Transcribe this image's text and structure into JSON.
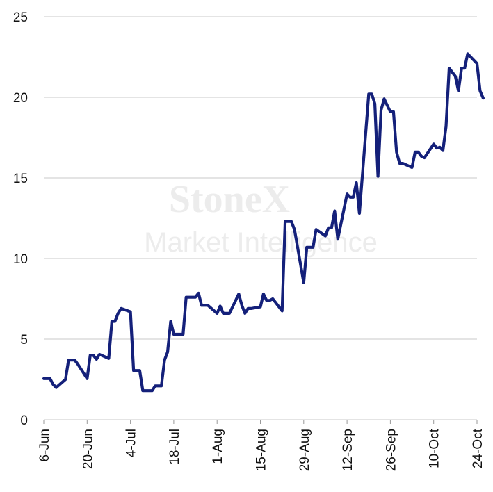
{
  "watermark": {
    "line1": "StoneX",
    "line2": "Market Intelligence"
  },
  "chart_data": {
    "type": "line",
    "title": "",
    "xlabel": "",
    "ylabel": "",
    "ylim": [
      0,
      25
    ],
    "yticks": [
      0,
      5,
      10,
      15,
      20,
      25
    ],
    "xlim": [
      "2022-06-06",
      "2022-10-24"
    ],
    "xticks": [
      {
        "date": "2022-06-06",
        "label": "6-Jun"
      },
      {
        "date": "2022-06-20",
        "label": "20-Jun"
      },
      {
        "date": "2022-07-04",
        "label": "4-Jul"
      },
      {
        "date": "2022-07-18",
        "label": "18-Jul"
      },
      {
        "date": "2022-08-01",
        "label": "1-Aug"
      },
      {
        "date": "2022-08-15",
        "label": "15-Aug"
      },
      {
        "date": "2022-08-29",
        "label": "29-Aug"
      },
      {
        "date": "2022-09-12",
        "label": "12-Sep"
      },
      {
        "date": "2022-09-26",
        "label": "26-Sep"
      },
      {
        "date": "2022-10-10",
        "label": "10-Oct"
      },
      {
        "date": "2022-10-24",
        "label": "24-Oct"
      }
    ],
    "grid": true,
    "series": [
      {
        "color": "#14207a",
        "points": [
          [
            "2022-06-06",
            2.55
          ],
          [
            "2022-06-07",
            2.55
          ],
          [
            "2022-06-08",
            2.55
          ],
          [
            "2022-06-09",
            2.2
          ],
          [
            "2022-06-10",
            2.0
          ],
          [
            "2022-06-13",
            2.5
          ],
          [
            "2022-06-14",
            3.7
          ],
          [
            "2022-06-15",
            3.7
          ],
          [
            "2022-06-16",
            3.7
          ],
          [
            "2022-06-17",
            3.45
          ],
          [
            "2022-06-20",
            2.55
          ],
          [
            "2022-06-21",
            4.0
          ],
          [
            "2022-06-22",
            4.0
          ],
          [
            "2022-06-23",
            3.75
          ],
          [
            "2022-06-24",
            4.05
          ],
          [
            "2022-06-27",
            3.8
          ],
          [
            "2022-06-28",
            6.1
          ],
          [
            "2022-06-29",
            6.1
          ],
          [
            "2022-06-30",
            6.6
          ],
          [
            "2022-07-01",
            6.9
          ],
          [
            "2022-07-04",
            6.7
          ],
          [
            "2022-07-05",
            3.05
          ],
          [
            "2022-07-06",
            3.05
          ],
          [
            "2022-07-07",
            3.05
          ],
          [
            "2022-07-08",
            1.8
          ],
          [
            "2022-07-11",
            1.8
          ],
          [
            "2022-07-12",
            2.1
          ],
          [
            "2022-07-13",
            2.1
          ],
          [
            "2022-07-14",
            2.1
          ],
          [
            "2022-07-15",
            3.7
          ],
          [
            "2022-07-16",
            4.2
          ],
          [
            "2022-07-17",
            6.1
          ],
          [
            "2022-07-18",
            5.3
          ],
          [
            "2022-07-19",
            5.3
          ],
          [
            "2022-07-20",
            5.3
          ],
          [
            "2022-07-21",
            5.3
          ],
          [
            "2022-07-22",
            7.6
          ],
          [
            "2022-07-25",
            7.6
          ],
          [
            "2022-07-26",
            7.85
          ],
          [
            "2022-07-27",
            7.1
          ],
          [
            "2022-07-28",
            7.1
          ],
          [
            "2022-07-29",
            7.1
          ],
          [
            "2022-08-01",
            6.6
          ],
          [
            "2022-08-02",
            7.05
          ],
          [
            "2022-08-03",
            6.6
          ],
          [
            "2022-08-04",
            6.6
          ],
          [
            "2022-08-05",
            6.6
          ],
          [
            "2022-08-08",
            7.8
          ],
          [
            "2022-08-09",
            7.1
          ],
          [
            "2022-08-10",
            6.6
          ],
          [
            "2022-08-11",
            6.9
          ],
          [
            "2022-08-12",
            6.9
          ],
          [
            "2022-08-15",
            7.0
          ],
          [
            "2022-08-16",
            7.8
          ],
          [
            "2022-08-17",
            7.4
          ],
          [
            "2022-08-18",
            7.4
          ],
          [
            "2022-08-19",
            7.5
          ],
          [
            "2022-08-22",
            6.75
          ],
          [
            "2022-08-23",
            12.3
          ],
          [
            "2022-08-24",
            12.3
          ],
          [
            "2022-08-25",
            12.3
          ],
          [
            "2022-08-26",
            11.8
          ],
          [
            "2022-08-29",
            8.5
          ],
          [
            "2022-08-30",
            10.7
          ],
          [
            "2022-08-31",
            10.7
          ],
          [
            "2022-09-01",
            10.7
          ],
          [
            "2022-09-02",
            11.8
          ],
          [
            "2022-09-05",
            11.4
          ],
          [
            "2022-09-06",
            11.9
          ],
          [
            "2022-09-07",
            11.9
          ],
          [
            "2022-09-08",
            12.95
          ],
          [
            "2022-09-09",
            11.2
          ],
          [
            "2022-09-12",
            14.0
          ],
          [
            "2022-09-13",
            13.8
          ],
          [
            "2022-09-14",
            13.8
          ],
          [
            "2022-09-15",
            14.7
          ],
          [
            "2022-09-16",
            12.8
          ],
          [
            "2022-09-19",
            20.2
          ],
          [
            "2022-09-20",
            20.2
          ],
          [
            "2022-09-21",
            19.6
          ],
          [
            "2022-09-22",
            15.1
          ],
          [
            "2022-09-23",
            19.2
          ],
          [
            "2022-09-24",
            19.9
          ],
          [
            "2022-09-26",
            19.1
          ],
          [
            "2022-09-27",
            19.1
          ],
          [
            "2022-09-28",
            16.6
          ],
          [
            "2022-09-29",
            15.9
          ],
          [
            "2022-09-30",
            15.9
          ],
          [
            "2022-10-03",
            15.65
          ],
          [
            "2022-10-04",
            16.6
          ],
          [
            "2022-10-05",
            16.6
          ],
          [
            "2022-10-06",
            16.35
          ],
          [
            "2022-10-07",
            16.25
          ],
          [
            "2022-10-10",
            17.1
          ],
          [
            "2022-10-11",
            16.85
          ],
          [
            "2022-10-12",
            16.9
          ],
          [
            "2022-10-13",
            16.7
          ],
          [
            "2022-10-14",
            18.2
          ],
          [
            "2022-10-15",
            21.8
          ],
          [
            "2022-10-17",
            21.3
          ],
          [
            "2022-10-18",
            20.4
          ],
          [
            "2022-10-19",
            21.8
          ],
          [
            "2022-10-20",
            21.8
          ],
          [
            "2022-10-21",
            22.7
          ],
          [
            "2022-10-24",
            22.1
          ],
          [
            "2022-10-25",
            20.4
          ],
          [
            "2022-10-26",
            19.95
          ]
        ]
      }
    ]
  }
}
